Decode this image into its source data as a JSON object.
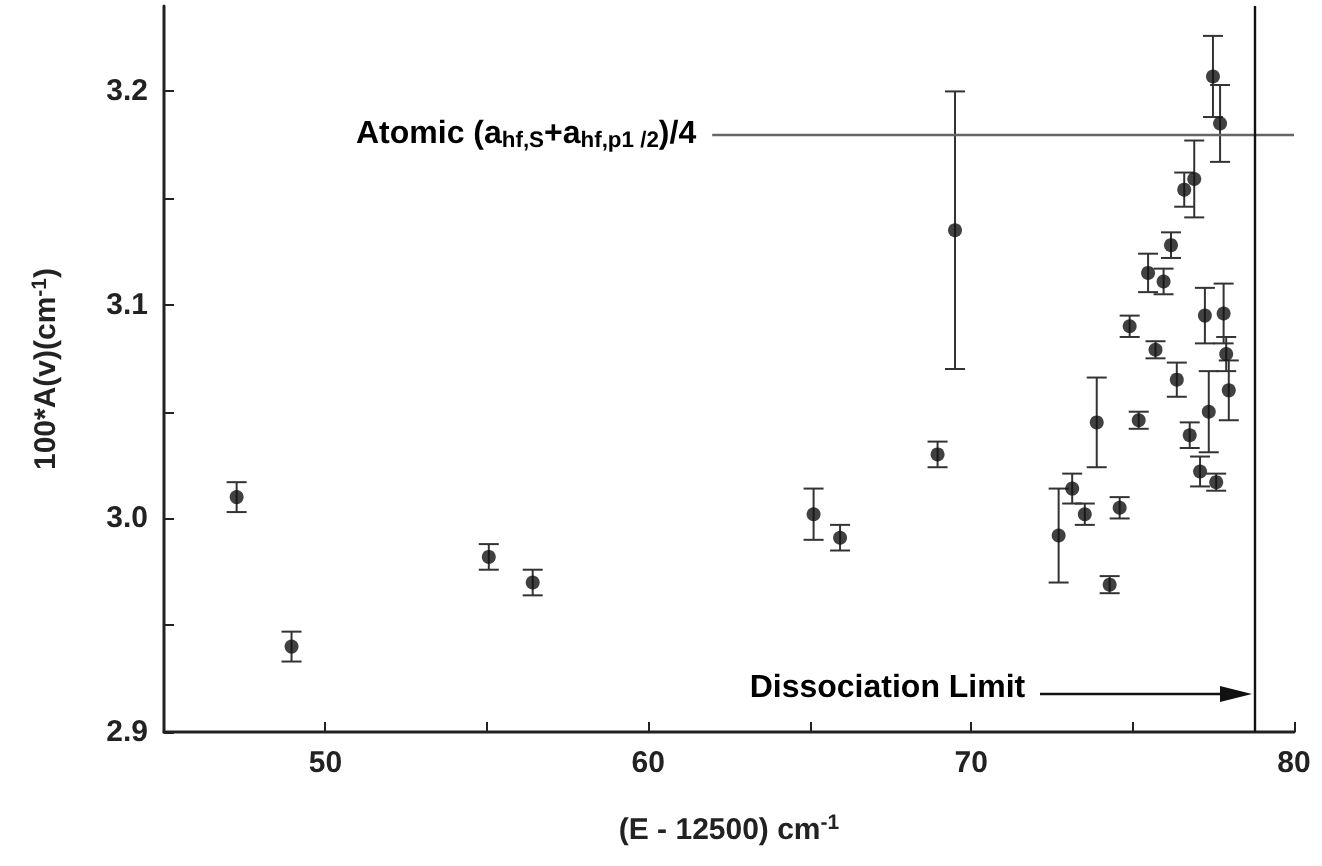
{
  "chart_data": {
    "type": "scatter",
    "xlabel": "(E - 12500) cm$^{-1}$",
    "ylabel": "100*A(v)(cm$^{-1}$)",
    "x": [
      47.25,
      48.95,
      55.06,
      56.42,
      65.12,
      65.94,
      68.96,
      69.5,
      72.71,
      73.13,
      73.52,
      73.89,
      74.29,
      74.6,
      74.91,
      75.19,
      75.48,
      75.71,
      75.96,
      76.19,
      76.37,
      76.6,
      76.77,
      76.91,
      77.09,
      77.24,
      77.36,
      77.49,
      77.59,
      77.71,
      77.82,
      77.9,
      77.98
    ],
    "series": [
      {
        "color": "#111111",
        "values": [
          3.01,
          2.94,
          2.982,
          2.97,
          3.002,
          2.991,
          3.03,
          3.135,
          2.992,
          3.014,
          3.002,
          3.045,
          2.969,
          3.005,
          3.09,
          3.046,
          3.115,
          3.079,
          3.111,
          3.128,
          3.065,
          3.154,
          3.039,
          3.159,
          3.022,
          3.095,
          3.05,
          3.207,
          3.017,
          3.185,
          3.096,
          3.077,
          3.06
        ],
        "errors": [
          0.007,
          0.007,
          0.006,
          0.006,
          0.012,
          0.006,
          0.006,
          0.065,
          0.022,
          0.007,
          0.005,
          0.021,
          0.004,
          0.005,
          0.005,
          0.004,
          0.009,
          0.004,
          0.006,
          0.006,
          0.008,
          0.008,
          0.006,
          0.018,
          0.007,
          0.013,
          0.019,
          0.019,
          0.004,
          0.018,
          0.014,
          0.008,
          0.014
        ]
      }
    ],
    "xlim": [
      45,
      80
    ],
    "xticks": [
      50,
      {
        "value": 55,
        "label": null
      },
      60,
      {
        "value": 65,
        "label": null
      },
      70,
      {
        "value": 75,
        "label": null
      },
      80
    ],
    "ylim": [
      2.9,
      3.24
    ],
    "yticks": [
      2.9,
      {
        "value": 2.95,
        "label": null
      },
      "3.0",
      {
        "value": 3.05,
        "label": null
      },
      3.1,
      {
        "value": 3.15,
        "label": null
      },
      3.2
    ],
    "marker": "circle",
    "ref_lines": [
      {
        "axis": "y",
        "value": 3.18,
        "label": "Atomic (a$_{hf,S}$+a$_{hf,p1 /2}$)/4",
        "color": "#666666"
      },
      {
        "axis": "x",
        "value": 78.8,
        "label": "Dissociation Limit",
        "color": "#111111"
      }
    ]
  }
}
